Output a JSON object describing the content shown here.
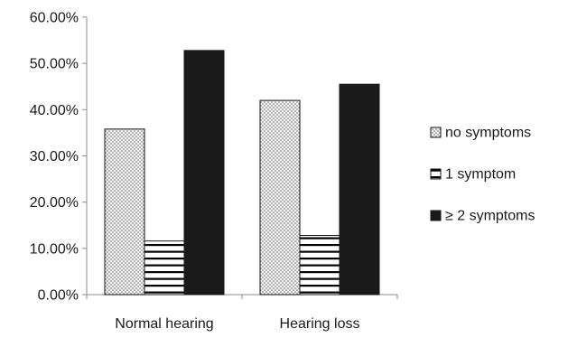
{
  "chart_data": {
    "type": "bar",
    "categories": [
      "Normal hearing",
      "Hearing loss"
    ],
    "series": [
      {
        "name": "no symptoms",
        "values": [
          35.8,
          42.0
        ],
        "pattern": "dots",
        "color": "#d9d9d9"
      },
      {
        "name": "1 symptom",
        "values": [
          11.6,
          12.8
        ],
        "pattern": "hlines",
        "color": "#000000"
      },
      {
        "name": "≥ 2 symptoms",
        "values": [
          52.8,
          45.5
        ],
        "pattern": "solid",
        "color": "#1a1a1a"
      }
    ],
    "yticks": [
      "0.00%",
      "10.00%",
      "20.00%",
      "30.00%",
      "40.00%",
      "50.00%",
      "60.00%"
    ],
    "ylim": [
      0,
      60
    ],
    "title": "",
    "xlabel": "",
    "ylabel": "",
    "grid": false,
    "legend_position": "right"
  }
}
